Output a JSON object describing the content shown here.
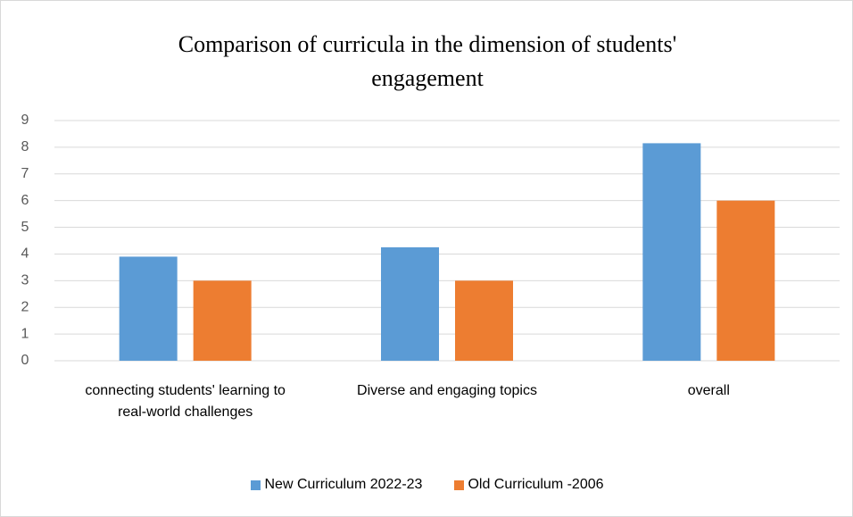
{
  "chart_data": {
    "type": "bar",
    "title": "Comparison of curricula in the dimension of students' engagement",
    "categories": [
      "connecting  students' learning  to real-world challenges",
      "Diverse and engaging topics",
      "overall"
    ],
    "series": [
      {
        "name": "New Curriculum 2022-23",
        "color": "#5b9bd5",
        "values": [
          3.9,
          4.25,
          8.15
        ]
      },
      {
        "name": "Old Curriculum -2006",
        "color": "#ed7d31",
        "values": [
          3,
          3,
          6
        ]
      }
    ],
    "ylim": [
      0,
      9
    ],
    "yticks": [
      0,
      1,
      2,
      3,
      4,
      5,
      6,
      7,
      8,
      9
    ],
    "grid": true,
    "legend": "bottom"
  }
}
